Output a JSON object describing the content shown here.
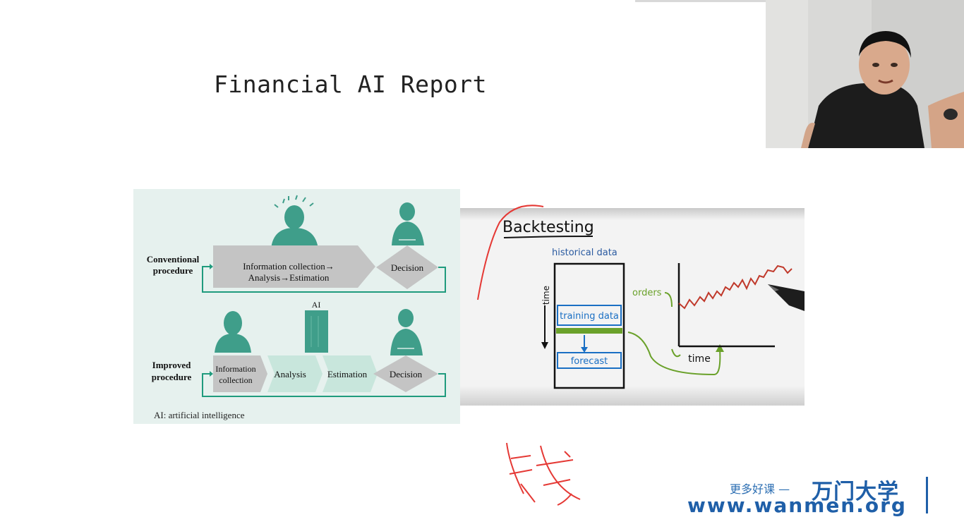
{
  "slide": {
    "title": "Financial AI Report"
  },
  "diagram1": {
    "conventional_label_1": "Conventional",
    "conventional_label_2": "procedure",
    "conventional_box_1": "Information collection→",
    "conventional_box_2": "Analysis→Estimation",
    "conventional_decision": "Decision",
    "ai_label": "AI",
    "improved_label_1": "Improved",
    "improved_label_2": "procedure",
    "step_info_1": "Information",
    "step_info_2": "collection",
    "step_analysis": "Analysis",
    "step_estimation": "Estimation",
    "improved_decision": "Decision",
    "footnote": "AI: artificial intelligence",
    "colors": {
      "background": "#e6f1ee",
      "figure": "#3f9e8a",
      "arrow": "#1f9b7d",
      "gray_box": "#c4c4c4",
      "teal_box": "#c8e6dc"
    }
  },
  "diagram2": {
    "title": "Backtesting",
    "historical": "historical data",
    "time_vertical": "time",
    "training": "training data",
    "forecast": "forecast",
    "orders": "orders",
    "time_axis": "time",
    "colors": {
      "ink": "#111111",
      "blue": "#1a6fc4",
      "green": "#6aa12a",
      "red": "#c0392b"
    }
  },
  "branding": {
    "tagline": "更多好课 —",
    "name": "万门大学",
    "url": "www.wanmen.org"
  }
}
